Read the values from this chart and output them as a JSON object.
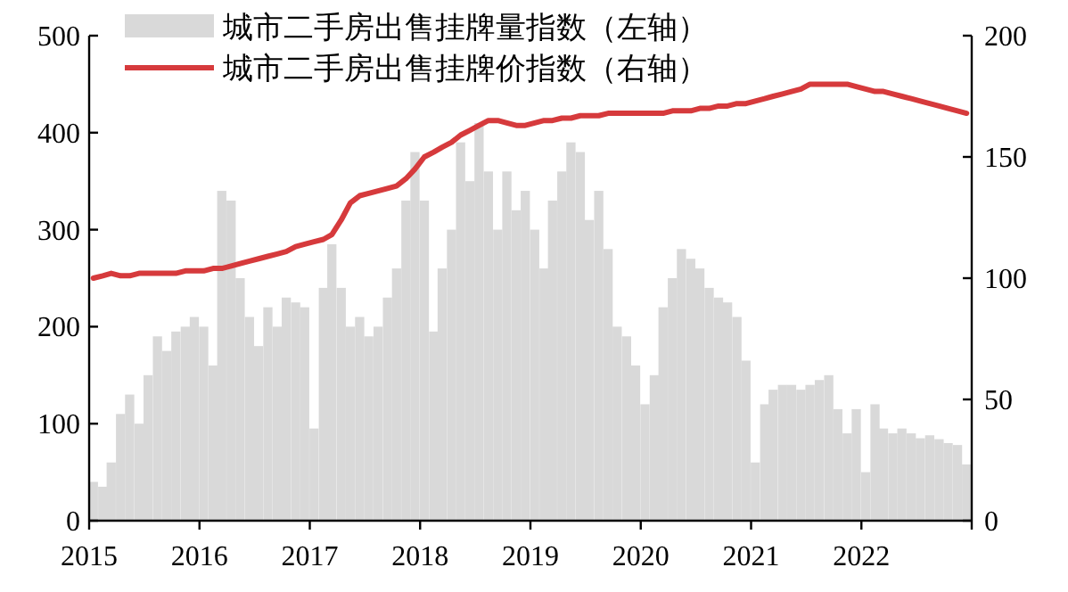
{
  "chart_data": {
    "type": "bar",
    "legend": "top left",
    "x": [
      "2015-01-15",
      "2015-02-15",
      "2015-03-15",
      "2015-04-15",
      "2015-05-15",
      "2015-06-15",
      "2015-07-15",
      "2015-08-15",
      "2015-09-15",
      "2015-10-15",
      "2015-11-15",
      "2015-12-15",
      "2016-01-15",
      "2016-02-15",
      "2016-03-15",
      "2016-04-15",
      "2016-05-15",
      "2016-06-15",
      "2016-07-15",
      "2016-08-15",
      "2016-09-15",
      "2016-10-15",
      "2016-11-15",
      "2016-12-15",
      "2017-01-15",
      "2017-02-15",
      "2017-03-15",
      "2017-04-15",
      "2017-05-15",
      "2017-06-15",
      "2017-07-15",
      "2017-08-15",
      "2017-09-15",
      "2017-10-15",
      "2017-11-15",
      "2017-12-15",
      "2018-01-15",
      "2018-02-15",
      "2018-03-15",
      "2018-04-15",
      "2018-05-15",
      "2018-06-15",
      "2018-07-15",
      "2018-08-15",
      "2018-09-15",
      "2018-10-15",
      "2018-11-15",
      "2018-12-15",
      "2019-01-15",
      "2019-02-15",
      "2019-03-15",
      "2019-04-15",
      "2019-05-15",
      "2019-06-15",
      "2019-07-15",
      "2019-08-15",
      "2019-09-15",
      "2019-10-15",
      "2019-11-15",
      "2019-12-15",
      "2020-01-15",
      "2020-02-15",
      "2020-03-15",
      "2020-04-15",
      "2020-05-15",
      "2020-06-15",
      "2020-07-15",
      "2020-08-15",
      "2020-09-15",
      "2020-10-15",
      "2020-11-15",
      "2020-12-15",
      "2021-01-15",
      "2021-02-15",
      "2021-03-15",
      "2021-04-15",
      "2021-05-15",
      "2021-06-15",
      "2021-07-15",
      "2021-08-15",
      "2021-09-15",
      "2021-10-15",
      "2021-11-15",
      "2021-12-15",
      "2022-01-15",
      "2022-02-15",
      "2022-03-15",
      "2022-04-15",
      "2022-05-15",
      "2022-06-15",
      "2022-07-15",
      "2022-08-15",
      "2022-09-15",
      "2022-10-15",
      "2022-11-15",
      "2022-12-15"
    ],
    "xlim": [
      "2015",
      "2023"
    ],
    "xticks": [
      {
        "value": "2015",
        "label": "2015"
      },
      {
        "value": "2016",
        "label": "2016"
      },
      {
        "value": "2017",
        "label": "2017"
      },
      {
        "value": "2018",
        "label": "2018"
      },
      {
        "value": "2019",
        "label": "2019"
      },
      {
        "value": "2020",
        "label": "2020"
      },
      {
        "value": "2021",
        "label": "2021"
      },
      {
        "value": "2022",
        "label": "2022"
      },
      {
        "value": "2023",
        "label": null
      }
    ],
    "ylim": [
      0,
      500
    ],
    "yticks": [
      0,
      100,
      200,
      300,
      400,
      500
    ],
    "y2lim": [
      0,
      200
    ],
    "y2ticks": [
      0,
      50,
      100,
      150,
      200
    ],
    "series": [
      {
        "name": "城市二手房出售挂牌量指数（左轴）",
        "color": "#d9d9d9",
        "values": [
          40,
          35,
          60,
          110,
          130,
          100,
          150,
          190,
          175,
          195,
          200,
          210,
          200,
          160,
          340,
          330,
          250,
          210,
          180,
          220,
          200,
          230,
          225,
          220,
          95,
          240,
          285,
          240,
          200,
          210,
          190,
          200,
          230,
          260,
          330,
          380,
          330,
          195,
          260,
          300,
          390,
          350,
          410,
          360,
          300,
          360,
          320,
          340,
          300,
          260,
          330,
          360,
          390,
          380,
          310,
          340,
          280,
          200,
          190,
          160,
          120,
          150,
          220,
          250,
          280,
          270,
          260,
          240,
          230,
          225,
          210,
          165,
          60,
          120,
          135,
          140,
          140,
          135,
          140,
          145,
          150,
          115,
          90,
          115,
          50,
          120,
          95,
          90,
          95,
          90,
          85,
          88,
          84,
          80,
          78,
          58
        ]
      },
      {
        "name": "城市二手房出售挂牌价指数（右轴）",
        "type": "line",
        "axis": "y2",
        "color": "#d63a3c",
        "values": [
          100,
          101,
          102,
          101,
          101,
          102,
          102,
          102,
          102,
          102,
          103,
          103,
          103,
          104,
          104,
          105,
          106,
          107,
          108,
          109,
          110,
          111,
          113,
          114,
          115,
          116,
          118,
          124,
          131,
          134,
          135,
          136,
          137,
          138,
          141,
          145,
          150,
          152,
          154,
          156,
          159,
          161,
          163,
          165,
          165,
          164,
          163,
          163,
          164,
          165,
          165,
          166,
          166,
          167,
          167,
          167,
          168,
          168,
          168,
          168,
          168,
          168,
          168,
          169,
          169,
          169,
          170,
          170,
          171,
          171,
          172,
          172,
          173,
          174,
          175,
          176,
          177,
          178,
          180,
          180,
          180,
          180,
          180,
          179,
          178,
          177,
          177,
          176,
          175,
          174,
          173,
          172,
          171,
          170,
          169,
          168
        ]
      }
    ]
  }
}
